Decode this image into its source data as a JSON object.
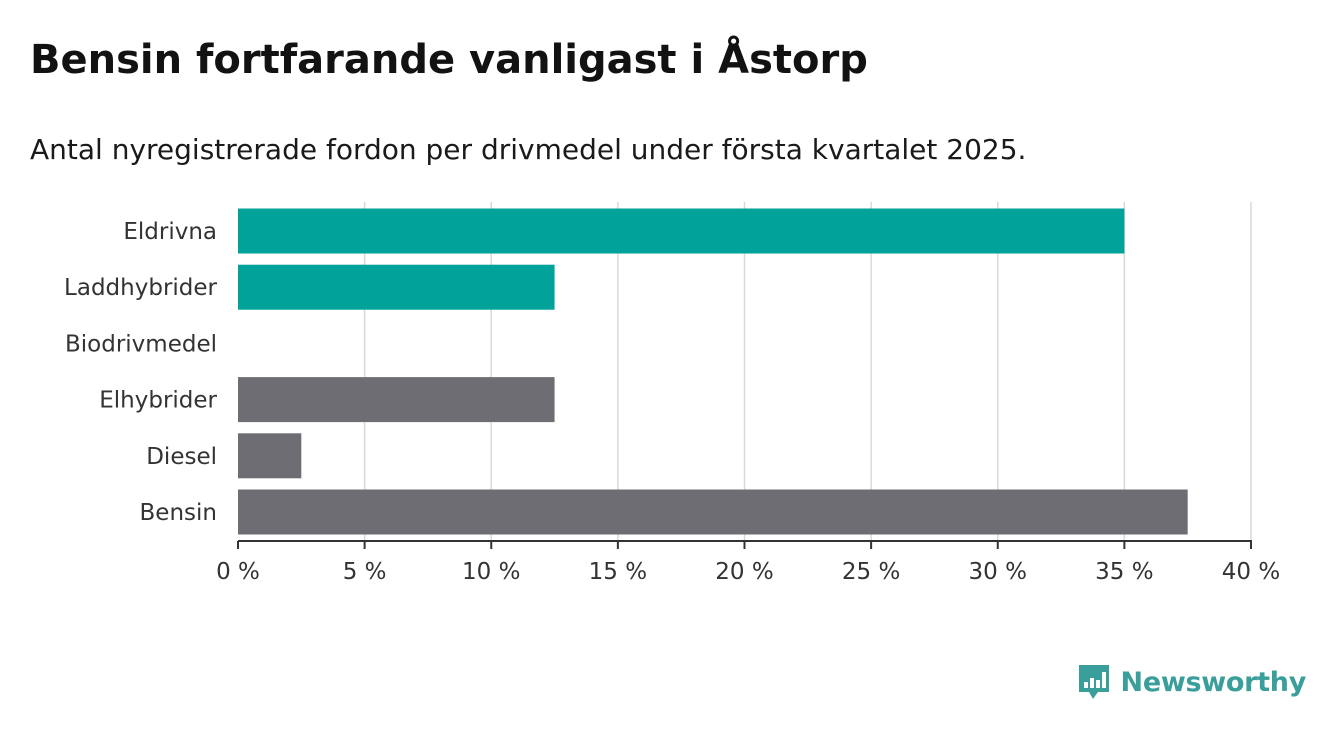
{
  "title": "Bensin fortfarande vanligast i Åstorp",
  "subtitle": "Antal nyregistrerade fordon per drivmedel under första kvartalet 2025.",
  "brand": {
    "name": "Newsworthy",
    "color": "#3a9e9b",
    "icon": "newsworthy-logo-icon"
  },
  "colors": {
    "highlight": "#00a29a",
    "default": "#6e6d73",
    "axis": "#333333",
    "grid": "#d9d9d9"
  },
  "chart_data": {
    "type": "bar",
    "orientation": "horizontal",
    "title": "Bensin fortfarande vanligast i Åstorp",
    "subtitle": "Antal nyregistrerade fordon per drivmedel under första kvartalet 2025.",
    "categories": [
      "Eldrivna",
      "Laddhybrider",
      "Biodrivmedel",
      "Elhybrider",
      "Diesel",
      "Bensin"
    ],
    "values": [
      35,
      12.5,
      0,
      12.5,
      2.5,
      37.5
    ],
    "bar_colors": [
      "#00a29a",
      "#00a29a",
      "#6e6d73",
      "#6e6d73",
      "#6e6d73",
      "#6e6d73"
    ],
    "unit": "%",
    "xlim": [
      0,
      40
    ],
    "xticks": [
      0,
      5,
      10,
      15,
      20,
      25,
      30,
      35,
      40
    ],
    "xtick_labels": [
      "0 %",
      "5 %",
      "10 %",
      "15 %",
      "20 %",
      "25 %",
      "30 %",
      "35 %",
      "40 %"
    ],
    "xlabel": "",
    "ylabel": "",
    "grid": "vertical",
    "legend": "none"
  }
}
